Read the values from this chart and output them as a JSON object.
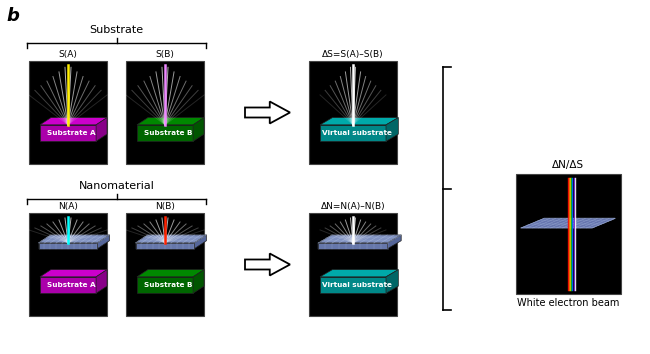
{
  "bg_color": "#000000",
  "white_bg": "#ffffff",
  "magenta_top": "#cc00cc",
  "magenta_side": "#880088",
  "magenta_front": "#aa00aa",
  "green_top": "#008800",
  "green_side": "#005500",
  "green_front": "#006600",
  "teal_top": "#00aaaa",
  "teal_side": "#006666",
  "teal_front": "#008888",
  "nano_top": "#7788bb",
  "nano_side": "#556699",
  "nano_front": "#6677aa",
  "label_b": "b",
  "label_substrate": "Substrate",
  "label_nanomaterial": "Nanomaterial",
  "label_SA": "S(A)",
  "label_SB": "S(B)",
  "label_NA": "N(A)",
  "label_NB": "N(B)",
  "label_delta_S": "ΔS=S(A)–S(B)",
  "label_delta_N": "ΔN=N(A)–N(B)",
  "label_delta_ratio": "ΔN/ΔS",
  "label_sub_A": "Substrate A",
  "label_sub_B": "Substrate B",
  "label_virt_sub": "Virtual substrate",
  "label_white_beam": "White electron beam",
  "cyan_beam": "#00ffff",
  "red_beam": "#ff2200",
  "yellow_beam": "#ffee00",
  "magenta_beam": "#ee88ff",
  "figsize": [
    6.5,
    3.54
  ]
}
